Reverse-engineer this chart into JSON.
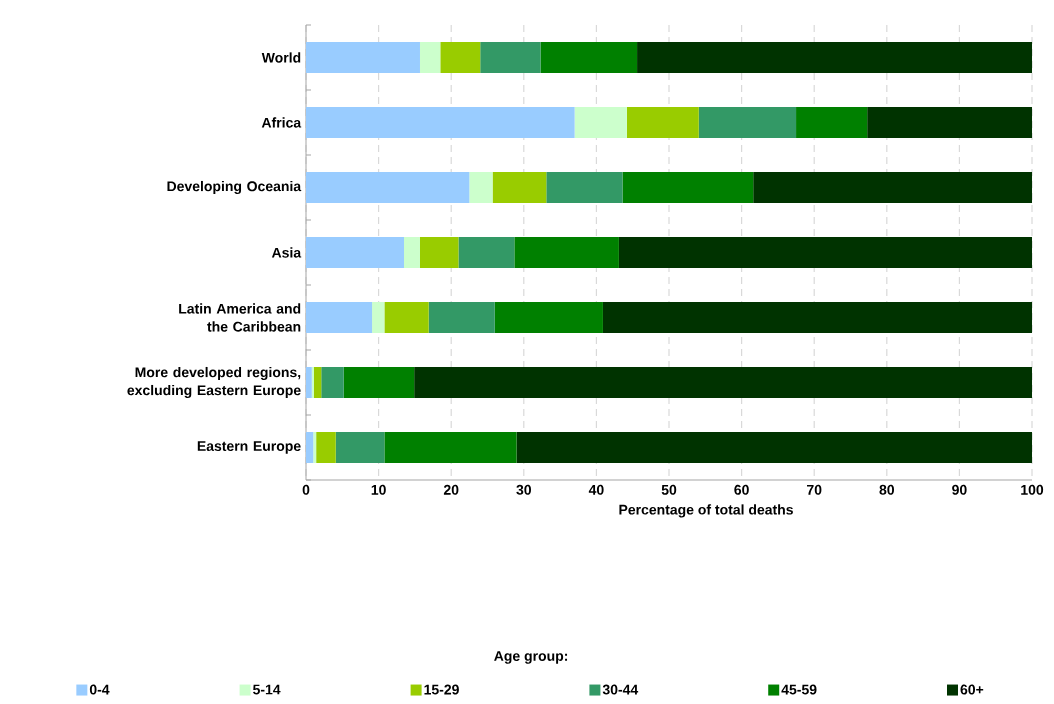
{
  "chart_data": {
    "type": "bar",
    "orientation": "horizontal",
    "stacked": true,
    "categories": [
      "World",
      "Africa",
      "Developing Oceania",
      "Asia",
      "Latin America and the Caribbean",
      "More developed regions, excluding Eastern Europe",
      "Eastern Europe"
    ],
    "series": [
      {
        "name": "0-4",
        "color": "#99ccff",
        "values": [
          15.7,
          37.0,
          22.5,
          13.5,
          9.1,
          0.8,
          1.0
        ]
      },
      {
        "name": "5-14",
        "color": "#ccffcc",
        "values": [
          2.8,
          7.2,
          3.2,
          2.2,
          1.7,
          0.3,
          0.4
        ]
      },
      {
        "name": "15-29",
        "color": "#99cc00",
        "values": [
          5.5,
          9.9,
          7.4,
          5.3,
          6.1,
          1.0,
          2.7
        ]
      },
      {
        "name": "30-44",
        "color": "#339966",
        "values": [
          8.3,
          13.4,
          10.5,
          7.7,
          9.1,
          3.1,
          6.7
        ]
      },
      {
        "name": "45-59",
        "color": "#008000",
        "values": [
          13.3,
          9.8,
          18.0,
          14.4,
          14.9,
          9.7,
          18.2
        ]
      },
      {
        "name": "60+",
        "color": "#003300",
        "values": [
          54.4,
          22.7,
          38.4,
          56.9,
          59.1,
          85.1,
          71.0
        ]
      }
    ],
    "xlim": [
      0,
      100
    ],
    "xticks": [
      0,
      10,
      20,
      30,
      40,
      50,
      60,
      70,
      80,
      90,
      100
    ],
    "xlabel": "Percentage of total deaths",
    "legend_title": "Age group:",
    "legend": "bottom",
    "grid": "x"
  }
}
